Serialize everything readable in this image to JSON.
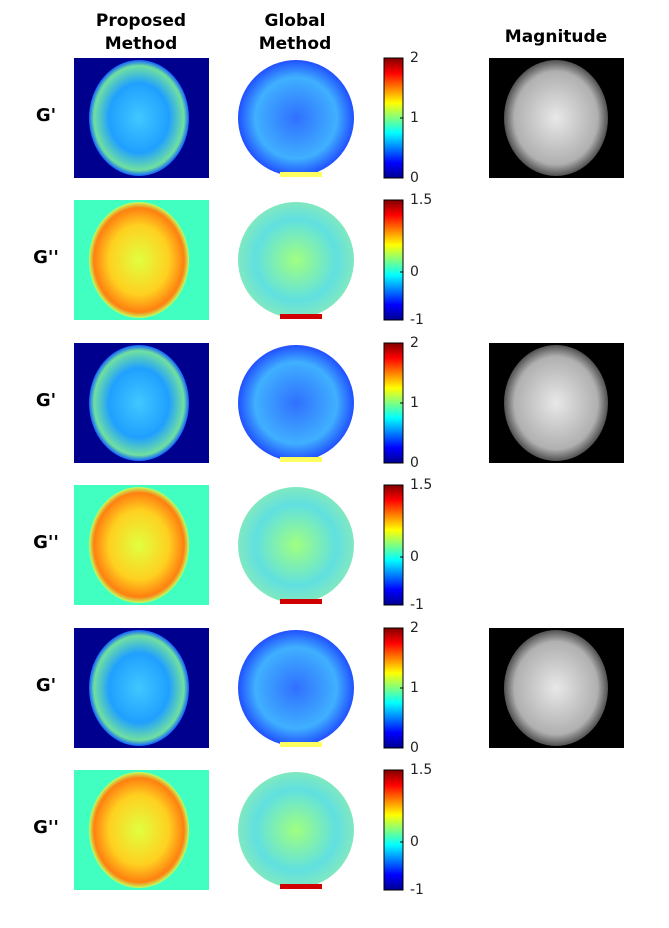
{
  "columns": [
    {
      "lines": [
        "Proposed",
        "Method"
      ]
    },
    {
      "lines": [
        "Global",
        "Method"
      ]
    },
    {
      "lines": [
        "Magnitude"
      ]
    }
  ],
  "rows": [
    {
      "label": "G'",
      "colorbar": {
        "lim": [
          0,
          2
        ],
        "ticks": [
          0,
          1,
          2
        ]
      }
    },
    {
      "label": "G''",
      "colorbar": {
        "lim": [
          -1,
          1.5
        ],
        "ticks": [
          -1,
          0,
          1.5
        ]
      }
    },
    {
      "label": "G'",
      "colorbar": {
        "lim": [
          0,
          2
        ],
        "ticks": [
          0,
          1,
          2
        ]
      }
    },
    {
      "label": "G''",
      "colorbar": {
        "lim": [
          -1,
          1.5
        ],
        "ticks": [
          -1,
          0,
          1.5
        ]
      }
    },
    {
      "label": "G'",
      "colorbar": {
        "lim": [
          0,
          2
        ],
        "ticks": [
          0,
          1,
          2
        ]
      }
    },
    {
      "label": "G''",
      "colorbar": {
        "lim": [
          -1,
          1.5
        ],
        "ticks": [
          -1,
          0,
          1.5
        ]
      }
    }
  ]
}
